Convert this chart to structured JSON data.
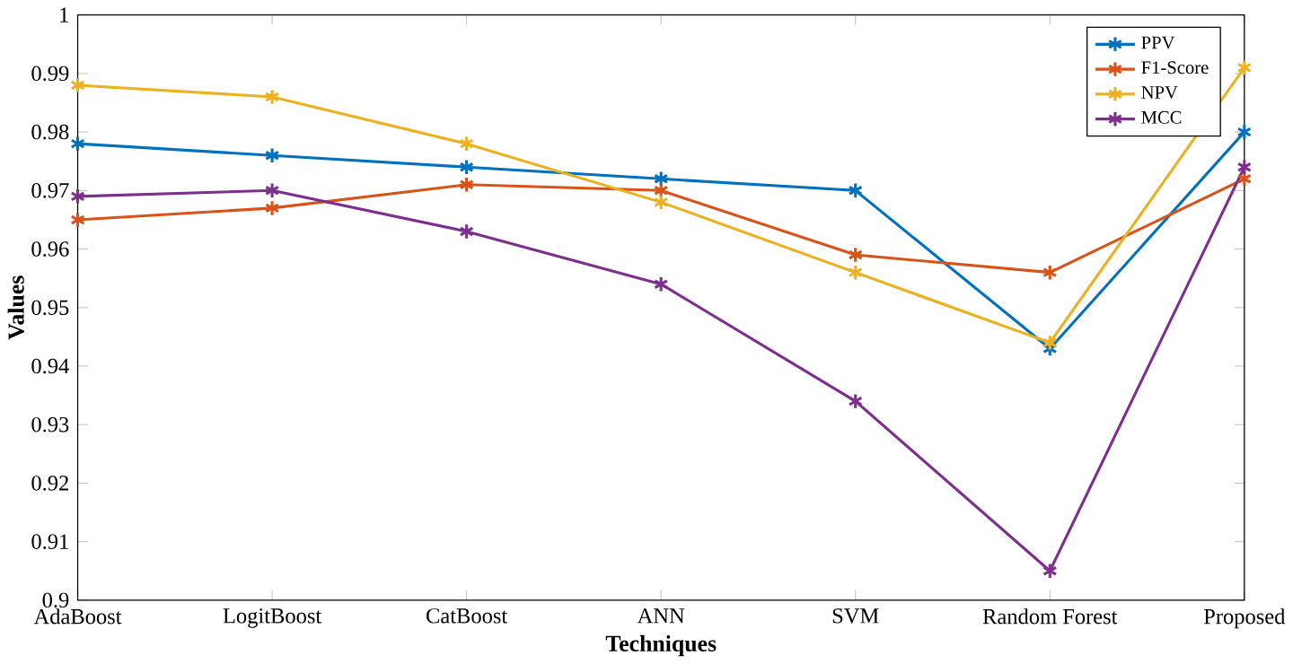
{
  "chart_data": {
    "type": "line",
    "xlabel": "Techniques",
    "ylabel": "Values",
    "categories": [
      "AdaBoost",
      "LogitBoost",
      "CatBoost",
      "ANN",
      "SVM",
      "Random Forest",
      "Proposed"
    ],
    "series": [
      {
        "name": "PPV",
        "color": "#0072bd",
        "values": [
          0.978,
          0.976,
          0.974,
          0.972,
          0.97,
          0.943,
          0.98
        ]
      },
      {
        "name": "F1-Score",
        "color": "#d95319",
        "values": [
          0.965,
          0.967,
          0.971,
          0.97,
          0.959,
          0.956,
          0.972
        ]
      },
      {
        "name": "NPV",
        "color": "#edb120",
        "values": [
          0.988,
          0.986,
          0.978,
          0.968,
          0.956,
          0.944,
          0.991
        ]
      },
      {
        "name": "MCC",
        "color": "#7e2f8e",
        "values": [
          0.969,
          0.97,
          0.963,
          0.954,
          0.934,
          0.905,
          0.974
        ]
      }
    ],
    "ylim": [
      0.9,
      1
    ],
    "yticks": [
      0.9,
      0.91,
      0.92,
      0.93,
      0.94,
      0.95,
      0.96,
      0.97,
      0.98,
      0.99,
      1
    ],
    "legend": "top right",
    "marker": "cross",
    "line_style": "solid",
    "grid": false
  }
}
